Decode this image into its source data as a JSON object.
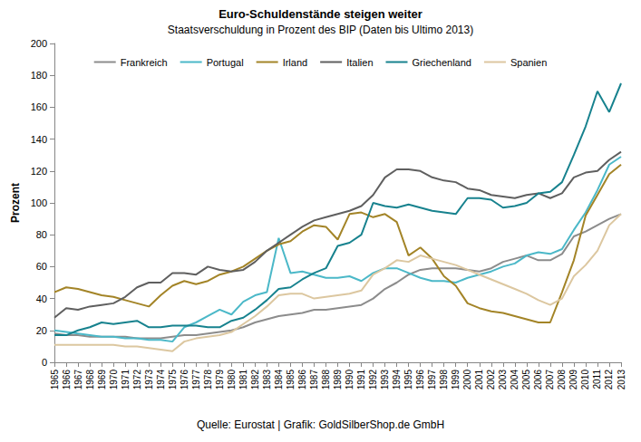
{
  "chart_data": {
    "type": "line",
    "title": "Euro-Schuldenstände steigen weiter",
    "subtitle": "Staatsverschuldung in Prozent des BIP (Daten bis Ultimo 2013)",
    "y_label": "Prozent",
    "annotations": [
      "Quelle: Eurostat | Grafik: GoldSilberShop.de GmbH"
    ],
    "categories": [
      "1965",
      "1966",
      "1967",
      "1968",
      "1969",
      "1970",
      "1971",
      "1972",
      "1973",
      "1974",
      "1975",
      "1976",
      "1977",
      "1978",
      "1979",
      "1980",
      "1981",
      "1982",
      "1983",
      "1984",
      "1985",
      "1986",
      "1987",
      "1988",
      "1989",
      "1990",
      "1991",
      "1992",
      "1993",
      "1994",
      "1995",
      "1996",
      "1997",
      "1998",
      "1999",
      "2000",
      "2001",
      "2002",
      "2003",
      "2004",
      "2005",
      "2006",
      "2007",
      "2008",
      "2009",
      "2010",
      "2011",
      "2012",
      "2013"
    ],
    "series": [
      {
        "name": "Frankreich",
        "color": "#8c8c8c",
        "values": [
          18,
          17,
          17,
          16,
          16,
          16,
          16,
          15,
          15,
          15,
          16,
          17,
          17,
          18,
          19,
          20,
          22,
          25,
          27,
          29,
          30,
          31,
          33,
          33,
          34,
          35,
          36,
          40,
          46,
          50,
          55,
          58,
          59,
          59,
          59,
          58,
          57,
          59,
          63,
          65,
          67,
          64,
          64,
          68,
          79,
          82,
          86,
          90,
          93
        ]
      },
      {
        "name": "Portugal",
        "color": "#4bb8c8",
        "values": [
          20,
          19,
          18,
          17,
          16,
          16,
          15,
          15,
          14,
          14,
          13,
          22,
          25,
          29,
          33,
          30,
          38,
          42,
          44,
          78,
          56,
          57,
          55,
          53,
          53,
          54,
          51,
          56,
          59,
          59,
          56,
          53,
          51,
          51,
          50,
          53,
          55,
          57,
          60,
          62,
          67,
          69,
          68,
          71,
          83,
          94,
          108,
          124,
          129
        ]
      },
      {
        "name": "Irland",
        "color": "#a38427",
        "values": [
          44,
          47,
          46,
          44,
          42,
          41,
          39,
          37,
          35,
          42,
          48,
          51,
          49,
          51,
          55,
          57,
          60,
          65,
          70,
          74,
          76,
          82,
          86,
          85,
          77,
          93,
          94,
          91,
          93,
          88,
          67,
          72,
          65,
          54,
          48,
          37,
          34,
          32,
          31,
          29,
          27,
          25,
          25,
          44,
          64,
          92,
          105,
          118,
          124
        ]
      },
      {
        "name": "Italien",
        "color": "#5f5f5f",
        "values": [
          28,
          34,
          33,
          35,
          36,
          37,
          41,
          47,
          50,
          50,
          56,
          56,
          55,
          60,
          58,
          57,
          58,
          63,
          70,
          75,
          80,
          85,
          89,
          91,
          93,
          95,
          98,
          105,
          116,
          121,
          121,
          120,
          116,
          114,
          113,
          109,
          108,
          105,
          104,
          103,
          105,
          106,
          103,
          106,
          116,
          119,
          120,
          127,
          132
        ]
      },
      {
        "name": "Griechenland",
        "color": "#17828e",
        "values": [
          17,
          17,
          20,
          22,
          25,
          24,
          25,
          26,
          22,
          22,
          23,
          23,
          23,
          22,
          22,
          26,
          28,
          33,
          39,
          46,
          47,
          52,
          56,
          59,
          73,
          75,
          80,
          100,
          98,
          97,
          99,
          97,
          95,
          94,
          93,
          103,
          103,
          102,
          97,
          98,
          100,
          106,
          107,
          113,
          130,
          148,
          170,
          157,
          175
        ]
      },
      {
        "name": "Spanien",
        "color": "#dcc7a0",
        "values": [
          11,
          11,
          11,
          11,
          11,
          11,
          10,
          10,
          9,
          8,
          7,
          13,
          15,
          16,
          17,
          19,
          24,
          29,
          35,
          42,
          43,
          43,
          40,
          41,
          42,
          43,
          45,
          55,
          59,
          64,
          63,
          67,
          65,
          63,
          61,
          58,
          55,
          52,
          49,
          46,
          43,
          39,
          36,
          40,
          54,
          61,
          70,
          86,
          93
        ]
      }
    ],
    "ylim": [
      0,
      200
    ],
    "yticks": [
      0,
      20,
      40,
      60,
      80,
      100,
      120,
      140,
      160,
      180,
      200
    ],
    "grid": false,
    "legend": "top"
  }
}
